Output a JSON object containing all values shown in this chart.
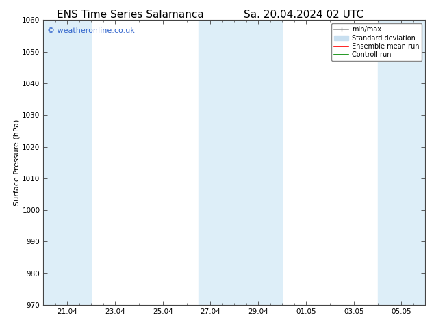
{
  "title_left": "ENS Time Series Salamanca",
  "title_right": "Sa. 20.04.2024 02 UTC",
  "ylabel": "Surface Pressure (hPa)",
  "ylim": [
    970,
    1060
  ],
  "yticks": [
    970,
    980,
    990,
    1000,
    1010,
    1020,
    1030,
    1040,
    1050,
    1060
  ],
  "xtick_labels": [
    "21.04",
    "23.04",
    "25.04",
    "27.04",
    "29.04",
    "01.05",
    "03.05",
    "05.05"
  ],
  "xtick_positions": [
    1,
    3,
    5,
    7,
    9,
    11,
    13,
    15
  ],
  "x_minor_ticks": [
    0,
    0.5,
    1,
    1.5,
    2,
    2.5,
    3,
    3.5,
    4,
    4.5,
    5,
    5.5,
    6,
    6.5,
    7,
    7.5,
    8,
    8.5,
    9,
    9.5,
    10,
    10.5,
    11,
    11.5,
    12,
    12.5,
    13,
    13.5,
    14,
    14.5,
    15,
    15.5,
    16
  ],
  "total_x_days": 16,
  "watermark": "© weatheronline.co.uk",
  "watermark_color": "#3366cc",
  "bg_color": "#ffffff",
  "plot_bg_color": "#ffffff",
  "shaded_bands": [
    {
      "x_start": 0,
      "x_end": 2,
      "color": "#ddeef8"
    },
    {
      "x_start": 6.5,
      "x_end": 10,
      "color": "#ddeef8"
    },
    {
      "x_start": 14,
      "x_end": 16,
      "color": "#ddeef8"
    }
  ],
  "legend_entries": [
    {
      "label": "min/max",
      "color": "#999999",
      "lw": 1.5,
      "style": "|-|"
    },
    {
      "label": "Standard deviation",
      "color": "#c8dff0",
      "lw": 8,
      "style": "solid"
    },
    {
      "label": "Ensemble mean run",
      "color": "#ff0000",
      "lw": 1.2,
      "style": "solid"
    },
    {
      "label": "Controll run",
      "color": "#008800",
      "lw": 1.2,
      "style": "solid"
    }
  ],
  "grid_color": "#dddddd",
  "spine_color": "#444444",
  "title_fontsize": 11,
  "label_fontsize": 8,
  "tick_fontsize": 7.5,
  "legend_fontsize": 7
}
